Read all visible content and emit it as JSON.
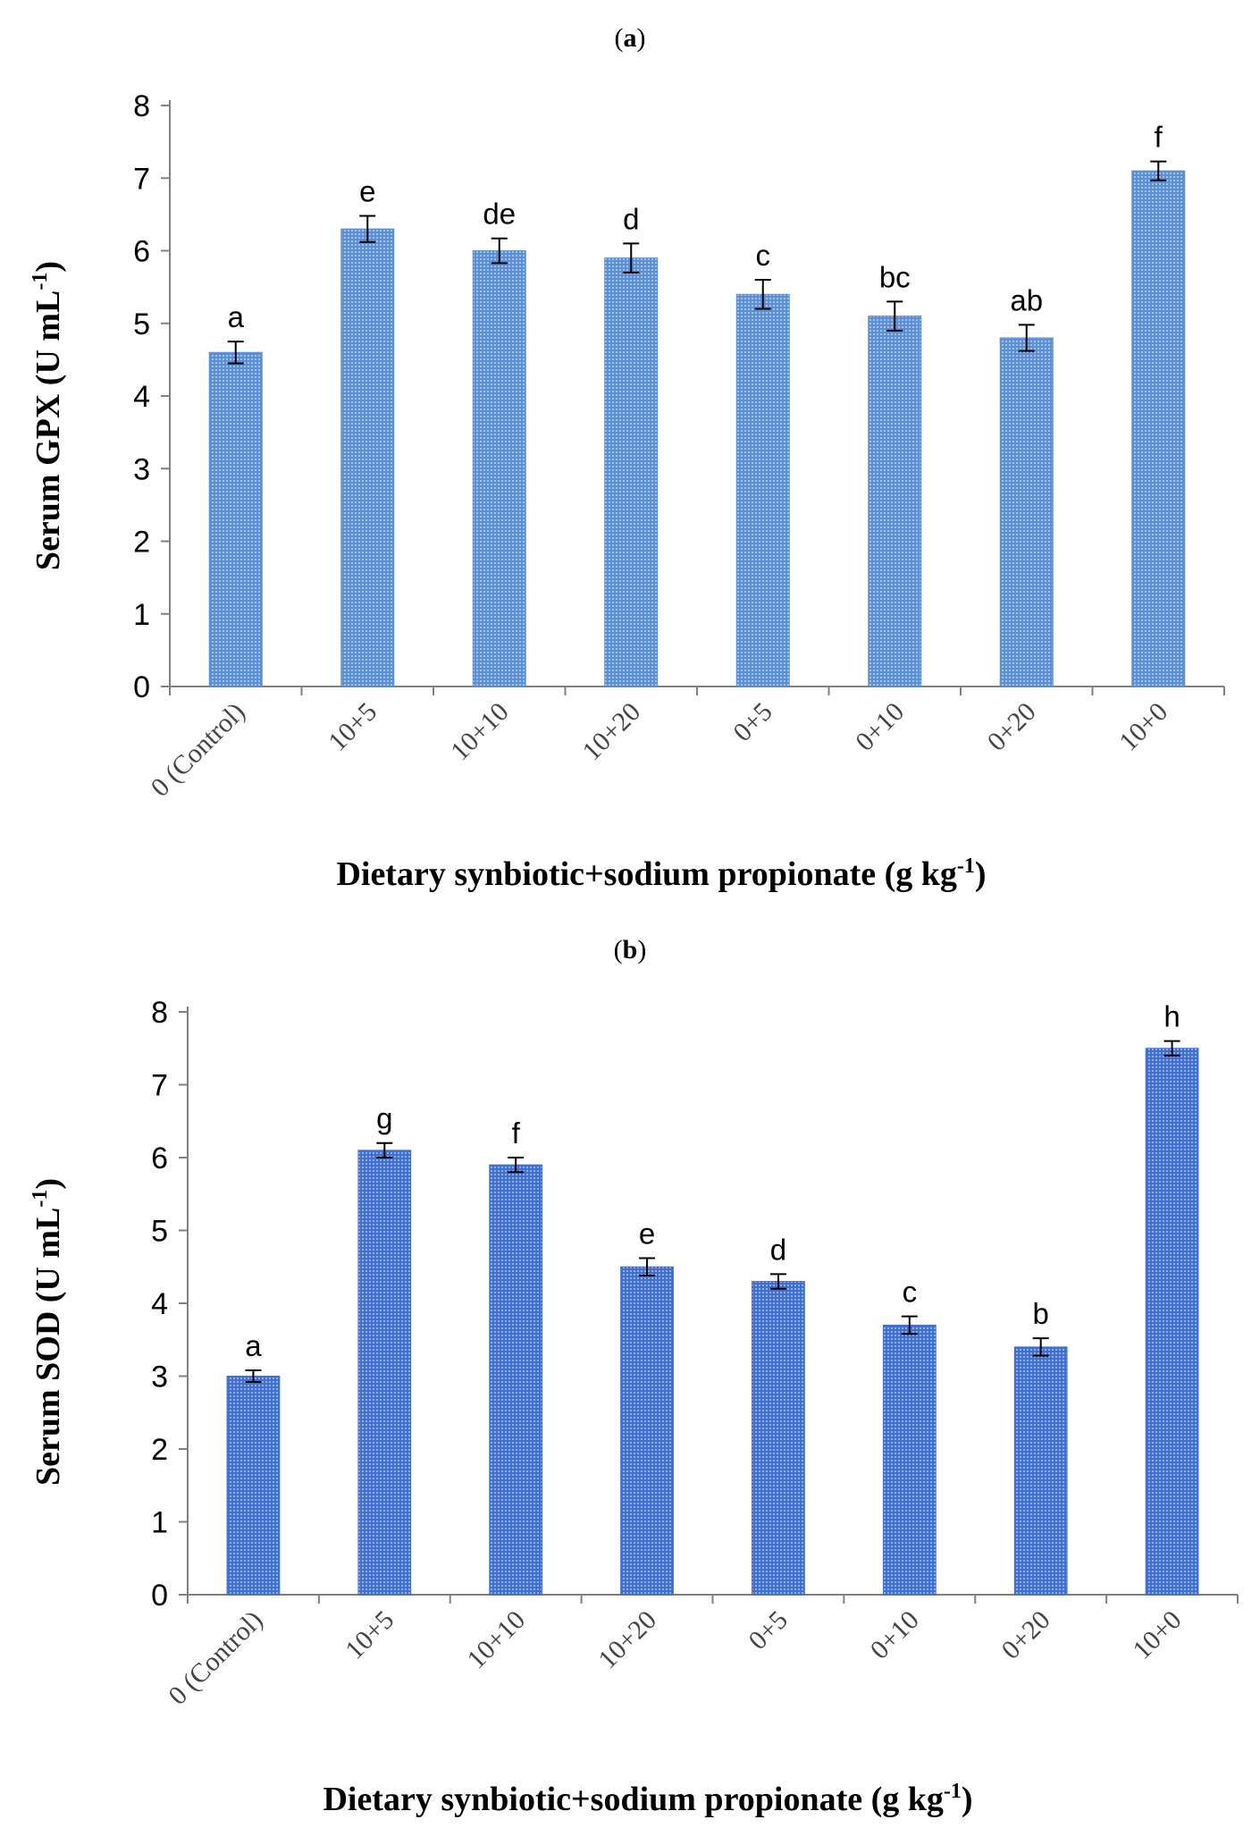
{
  "chart_data": [
    {
      "panel": "a",
      "type": "bar",
      "title": "",
      "categories": [
        "0 (Control)",
        "10+5",
        "10+10",
        "10+20",
        "0+5",
        "0+10",
        "0+20",
        "10+0"
      ],
      "values": [
        4.6,
        6.3,
        6.0,
        5.9,
        5.4,
        5.1,
        4.8,
        7.1
      ],
      "errors": [
        0.15,
        0.18,
        0.17,
        0.2,
        0.2,
        0.2,
        0.18,
        0.13
      ],
      "significance_labels": [
        "a",
        "e",
        "de",
        "d",
        "c",
        "bc",
        "ab",
        "f"
      ],
      "ylabel": "Serum GPX (U mL",
      "ylabel_sup": "-1",
      "ylabel_close": ")",
      "xlabel": "Dietary synbiotic+sodium propionate (g kg",
      "xlabel_sup": "-1",
      "xlabel_close": ")",
      "ylim": [
        0,
        8
      ],
      "yticks": [
        "0",
        "1",
        "2",
        "3",
        "4",
        "5",
        "6",
        "7",
        "8"
      ],
      "bar_color": "#5b8fd6"
    },
    {
      "panel": "b",
      "type": "bar",
      "title": "",
      "categories": [
        "0 (Control)",
        "10+5",
        "10+10",
        "10+20",
        "0+5",
        "0+10",
        "0+20",
        "10+0"
      ],
      "values": [
        3.0,
        6.1,
        5.9,
        4.5,
        4.3,
        3.7,
        3.4,
        7.5
      ],
      "errors": [
        0.08,
        0.1,
        0.1,
        0.12,
        0.1,
        0.12,
        0.12,
        0.1
      ],
      "significance_labels": [
        "a",
        "g",
        "f",
        "e",
        "d",
        "c",
        "b",
        "h"
      ],
      "ylabel": "Serum SOD (U  mL",
      "ylabel_sup": "-1",
      "ylabel_close": ")",
      "xlabel": "Dietary synbiotic+sodium propionate (g kg",
      "xlabel_sup": "-1",
      "xlabel_close": ")",
      "ylim": [
        0,
        8
      ],
      "yticks": [
        "0",
        "1",
        "2",
        "3",
        "4",
        "5",
        "6",
        "7",
        "8"
      ],
      "bar_color": "#3f6fcf"
    }
  ],
  "panels": {
    "a": {
      "open": "(",
      "letter": "a",
      "close": ")"
    },
    "b": {
      "open": "(",
      "letter": "b",
      "close": ")"
    }
  }
}
